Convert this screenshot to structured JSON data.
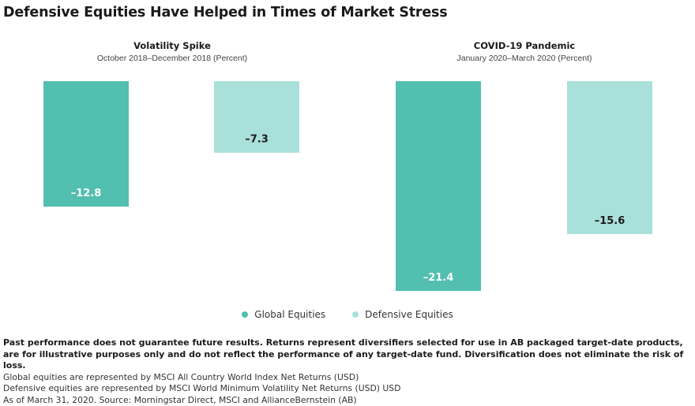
{
  "title": "Defensive Equities Have Helped in Times of Market Stress",
  "legend": [
    {
      "label": "Global Equities",
      "color": "#52bfb0"
    },
    {
      "label": "Defensive Equities",
      "color": "#a9e0da"
    }
  ],
  "chart_data": [
    {
      "type": "bar",
      "title": "Volatility Spike",
      "subtitle": "October 2018–December 2018 (Percent)",
      "categories": [
        "Global Equities",
        "Defensive Equities"
      ],
      "values": [
        -12.8,
        -7.3
      ],
      "labels": [
        "–12.8",
        "–7.3"
      ],
      "ylim": [
        -21.4,
        0
      ]
    },
    {
      "type": "bar",
      "title": "COVID-19 Pandemic",
      "subtitle": "January 2020–March 2020 (Percent)",
      "categories": [
        "Global Equities",
        "Defensive Equities"
      ],
      "values": [
        -21.4,
        -15.6
      ],
      "labels": [
        "–21.4",
        "–15.6"
      ],
      "ylim": [
        -21.4,
        0
      ]
    }
  ],
  "footnotes": {
    "disclaimer": "Past performance does not guarantee future results. Returns represent diversifiers selected for use in AB packaged target-date products, are for illustrative purposes only and do not reflect the performance of any target-date fund. Diversification does not eliminate the risk of loss.",
    "global_def": "Global equities are represented by MSCI All Country World Index Net Returns (USD)",
    "defensive_def": "Defensive equities are represented by MSCI World Minimum Volatility Net Returns (USD) USD",
    "source": "As of March 31, 2020. Source: Morningstar Direct, MSCI and AllianceBernstein (AB)"
  }
}
